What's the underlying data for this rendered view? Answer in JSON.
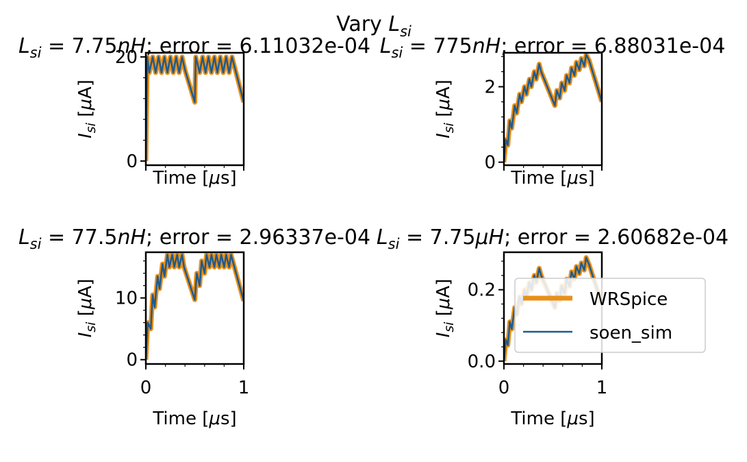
{
  "figure": {
    "suptitle_prefix": "Vary ",
    "suptitle_var": "L",
    "suptitle_sub": "si"
  },
  "colors": {
    "wrspice": "#E8901A",
    "soen_sim": "#1F5A8E",
    "axes": "#000000",
    "background": "#FFFFFF"
  },
  "legend": {
    "placement": "lower-right of bottom-right panel",
    "entries": [
      "WRSpice",
      "soen_sim"
    ]
  },
  "panel_titles": [
    {
      "lhs_var": "L",
      "lhs_sub": "si",
      "eq": " = ",
      "value": "7.75",
      "unit_prefix": "n",
      "unit": "H",
      "rest": "; error = 6.11032e-04"
    },
    {
      "lhs_var": "L",
      "lhs_sub": "si",
      "eq": " = ",
      "value": "775",
      "unit_prefix": "n",
      "unit": "H",
      "rest": "; error = 6.88031e-04"
    },
    {
      "lhs_var": "L",
      "lhs_sub": "si",
      "eq": " = ",
      "value": "77.5",
      "unit_prefix": "n",
      "unit": "H",
      "rest": "; error = 2.96337e-04"
    },
    {
      "lhs_var": "L",
      "lhs_sub": "si",
      "eq": " = ",
      "value": "7.75",
      "unit_prefix": "μ",
      "unit": "H",
      "rest": "; error = 2.60682e-04"
    }
  ],
  "axis_labels": {
    "ylabel": "I_si [μA]",
    "xlabel": "Time [μs]"
  },
  "chart_data": [
    {
      "type": "line",
      "panel": "top-left",
      "xlim": [
        0,
        1
      ],
      "ylim": [
        -0.8,
        20.8
      ],
      "yticks": [
        0,
        20
      ],
      "ytick_labels": [
        "0",
        "20"
      ],
      "xticks": [
        0,
        1
      ],
      "xtick_labels": [
        "",
        ""
      ],
      "series": [
        {
          "name": "WRSpice",
          "x": [
            0,
            0.015,
            0.035,
            0.07,
            0.1,
            0.13,
            0.16,
            0.19,
            0.22,
            0.25,
            0.28,
            0.31,
            0.34,
            0.37,
            0.4,
            0.5,
            0.51,
            0.55,
            0.58,
            0.61,
            0.64,
            0.67,
            0.7,
            0.73,
            0.76,
            0.79,
            0.82,
            0.85,
            0.88,
            1.0
          ],
          "y": [
            0,
            20,
            17,
            20,
            17,
            20,
            17,
            20,
            17,
            20,
            17,
            20,
            17,
            20,
            17.5,
            11.3,
            20,
            17,
            20,
            17,
            20,
            17,
            20,
            17,
            20,
            17,
            20,
            17,
            20,
            11.3
          ]
        },
        {
          "name": "soen_sim",
          "x": [
            0,
            0.015,
            0.035,
            0.07,
            0.1,
            0.13,
            0.16,
            0.19,
            0.22,
            0.25,
            0.28,
            0.31,
            0.34,
            0.37,
            0.4,
            0.5,
            0.51,
            0.55,
            0.58,
            0.61,
            0.64,
            0.67,
            0.7,
            0.73,
            0.76,
            0.79,
            0.82,
            0.85,
            0.88,
            1.0
          ],
          "y": [
            0,
            20,
            17,
            20,
            17,
            20,
            17,
            20,
            17,
            20,
            17,
            20,
            17,
            20,
            17.5,
            11.3,
            20,
            17,
            20,
            17,
            20,
            17,
            20,
            17,
            20,
            17,
            20,
            17,
            20,
            11.3
          ]
        }
      ]
    },
    {
      "type": "line",
      "panel": "top-right",
      "xlim": [
        0,
        1
      ],
      "ylim": [
        -0.08,
        2.9
      ],
      "yticks": [
        0,
        2
      ],
      "ytick_labels": [
        "0",
        "2"
      ],
      "xticks": [
        0,
        1
      ],
      "xtick_labels": [
        "",
        ""
      ],
      "series": [
        {
          "name": "WRSpice",
          "x": [
            0,
            0.02,
            0.04,
            0.06,
            0.08,
            0.11,
            0.13,
            0.16,
            0.18,
            0.21,
            0.23,
            0.26,
            0.28,
            0.31,
            0.33,
            0.36,
            0.38,
            0.52,
            0.54,
            0.57,
            0.59,
            0.62,
            0.64,
            0.67,
            0.69,
            0.72,
            0.74,
            0.77,
            0.79,
            0.82,
            0.84,
            0.87,
            1.0
          ],
          "y": [
            0,
            0.6,
            0.45,
            1.1,
            0.9,
            1.5,
            1.3,
            1.8,
            1.6,
            2.0,
            1.8,
            2.2,
            2.0,
            2.4,
            2.2,
            2.6,
            2.4,
            1.5,
            1.9,
            1.7,
            2.1,
            1.9,
            2.3,
            2.1,
            2.5,
            2.3,
            2.65,
            2.45,
            2.75,
            2.55,
            2.85,
            2.7,
            1.6
          ]
        },
        {
          "name": "soen_sim",
          "x": [
            0,
            0.02,
            0.04,
            0.06,
            0.08,
            0.11,
            0.13,
            0.16,
            0.18,
            0.21,
            0.23,
            0.26,
            0.28,
            0.31,
            0.33,
            0.36,
            0.38,
            0.52,
            0.54,
            0.57,
            0.59,
            0.62,
            0.64,
            0.67,
            0.69,
            0.72,
            0.74,
            0.77,
            0.79,
            0.82,
            0.84,
            0.87,
            1.0
          ],
          "y": [
            0,
            0.6,
            0.45,
            1.1,
            0.9,
            1.5,
            1.3,
            1.8,
            1.6,
            2.0,
            1.8,
            2.2,
            2.0,
            2.4,
            2.2,
            2.6,
            2.4,
            1.5,
            1.9,
            1.7,
            2.1,
            1.9,
            2.3,
            2.1,
            2.5,
            2.3,
            2.65,
            2.45,
            2.75,
            2.55,
            2.85,
            2.7,
            1.6
          ]
        }
      ]
    },
    {
      "type": "line",
      "panel": "bottom-left",
      "xlim": [
        0,
        1
      ],
      "ylim": [
        -0.7,
        17.4
      ],
      "yticks": [
        0,
        10
      ],
      "ytick_labels": [
        "0",
        "10"
      ],
      "xticks": [
        0,
        1
      ],
      "xtick_labels": [
        "0",
        "1"
      ],
      "series": [
        {
          "name": "WRSpice",
          "x": [
            0,
            0.02,
            0.05,
            0.07,
            0.09,
            0.12,
            0.14,
            0.17,
            0.19,
            0.22,
            0.24,
            0.27,
            0.29,
            0.32,
            0.34,
            0.37,
            0.39,
            0.5,
            0.52,
            0.55,
            0.57,
            0.6,
            0.62,
            0.65,
            0.67,
            0.7,
            0.72,
            0.75,
            0.77,
            0.8,
            0.82,
            0.85,
            0.87,
            1.0
          ],
          "y": [
            0,
            6,
            5,
            10.5,
            8.5,
            13.5,
            11.5,
            15.5,
            13.5,
            17,
            15,
            17,
            15,
            17,
            15,
            17,
            15,
            9.7,
            14,
            12,
            16,
            14,
            17,
            15,
            17,
            15,
            17,
            15,
            17,
            15,
            17,
            15,
            17,
            9.5
          ]
        },
        {
          "name": "soen_sim",
          "x": [
            0,
            0.02,
            0.05,
            0.07,
            0.09,
            0.12,
            0.14,
            0.17,
            0.19,
            0.22,
            0.24,
            0.27,
            0.29,
            0.32,
            0.34,
            0.37,
            0.39,
            0.5,
            0.52,
            0.55,
            0.57,
            0.6,
            0.62,
            0.65,
            0.67,
            0.7,
            0.72,
            0.75,
            0.77,
            0.8,
            0.82,
            0.85,
            0.87,
            1.0
          ],
          "y": [
            0,
            6,
            5,
            10.5,
            8.5,
            13.5,
            11.5,
            15.5,
            13.5,
            17,
            15,
            17,
            15,
            17,
            15,
            17,
            15,
            9.7,
            14,
            12,
            16,
            14,
            17,
            15,
            17,
            15,
            17,
            15,
            17,
            15,
            17,
            15,
            17,
            9.5
          ]
        }
      ]
    },
    {
      "type": "line",
      "panel": "bottom-right",
      "xlim": [
        0,
        1
      ],
      "ylim": [
        -0.008,
        0.305
      ],
      "yticks": [
        0,
        0.2
      ],
      "ytick_labels": [
        "0.0",
        "0.2"
      ],
      "xticks": [
        0,
        1
      ],
      "xtick_labels": [
        "0",
        "1"
      ],
      "series": [
        {
          "name": "WRSpice",
          "x": [
            0,
            0.02,
            0.04,
            0.06,
            0.08,
            0.11,
            0.13,
            0.16,
            0.18,
            0.21,
            0.23,
            0.26,
            0.28,
            0.31,
            0.33,
            0.36,
            0.38,
            0.52,
            0.54,
            0.57,
            0.59,
            0.62,
            0.64,
            0.67,
            0.69,
            0.72,
            0.74,
            0.77,
            0.79,
            0.82,
            0.84,
            0.87,
            1.0
          ],
          "y": [
            0,
            0.06,
            0.045,
            0.11,
            0.09,
            0.15,
            0.13,
            0.18,
            0.16,
            0.2,
            0.18,
            0.22,
            0.2,
            0.24,
            0.22,
            0.26,
            0.24,
            0.15,
            0.19,
            0.17,
            0.21,
            0.19,
            0.23,
            0.21,
            0.25,
            0.23,
            0.265,
            0.245,
            0.275,
            0.255,
            0.29,
            0.27,
            0.16
          ]
        },
        {
          "name": "soen_sim",
          "x": [
            0,
            0.02,
            0.04,
            0.06,
            0.08,
            0.11,
            0.13,
            0.16,
            0.18,
            0.21,
            0.23,
            0.26,
            0.28,
            0.31,
            0.33,
            0.36,
            0.38,
            0.52,
            0.54,
            0.57,
            0.59,
            0.62,
            0.64,
            0.67,
            0.69,
            0.72,
            0.74,
            0.77,
            0.79,
            0.82,
            0.84,
            0.87,
            1.0
          ],
          "y": [
            0,
            0.06,
            0.045,
            0.11,
            0.09,
            0.15,
            0.13,
            0.18,
            0.16,
            0.2,
            0.18,
            0.22,
            0.2,
            0.24,
            0.22,
            0.26,
            0.24,
            0.15,
            0.19,
            0.17,
            0.21,
            0.19,
            0.23,
            0.21,
            0.25,
            0.23,
            0.265,
            0.245,
            0.275,
            0.255,
            0.29,
            0.27,
            0.16
          ]
        }
      ]
    }
  ]
}
